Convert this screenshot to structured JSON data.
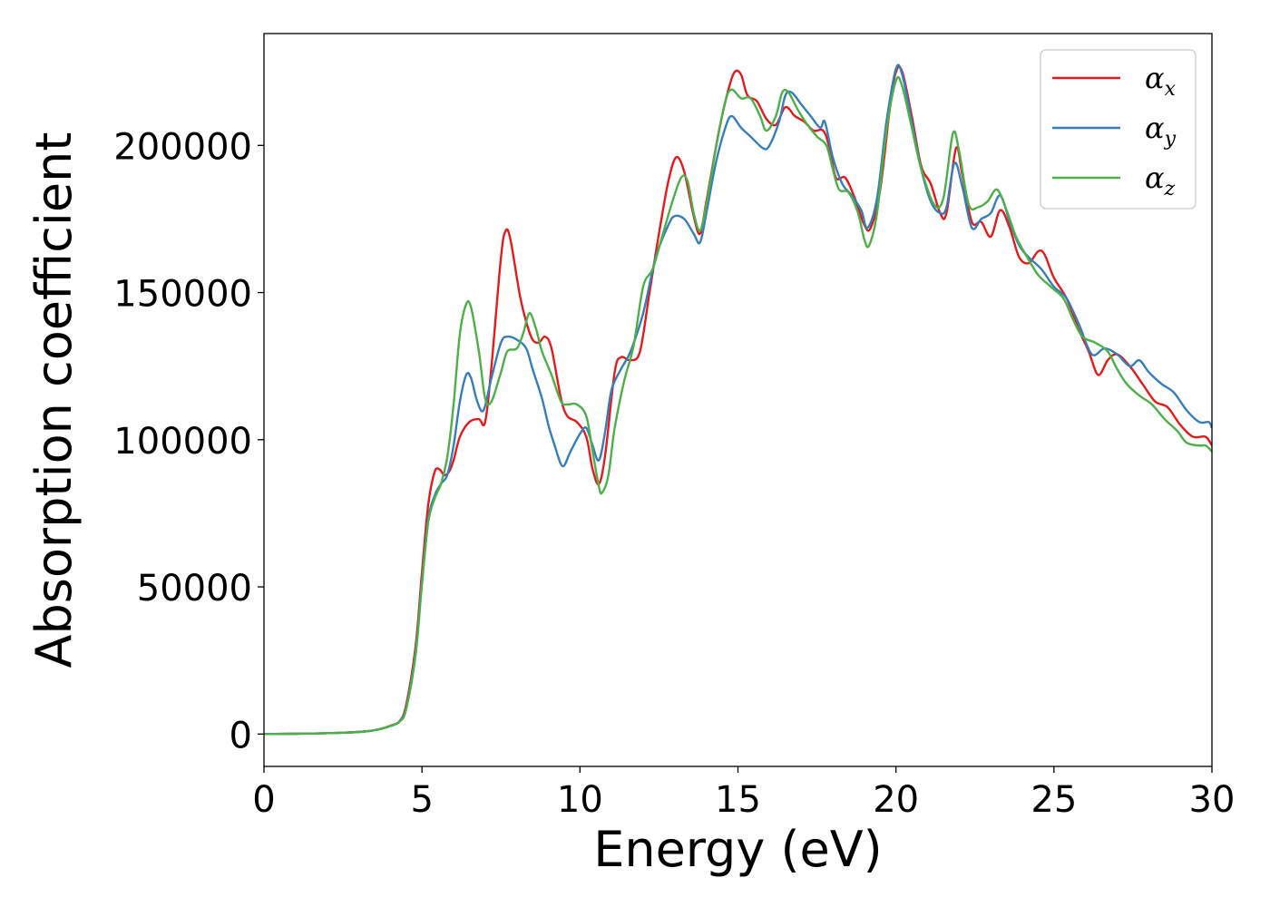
{
  "chart_data": {
    "type": "line",
    "title": "",
    "xlabel": "Energy (eV)",
    "ylabel": "Absorption coefficient",
    "xlim": [
      0,
      30
    ],
    "ylim": [
      -11000,
      238000
    ],
    "xticks": [
      0,
      5,
      10,
      15,
      20,
      25,
      30
    ],
    "xtick_labels": [
      "0",
      "5",
      "10",
      "15",
      "20",
      "25",
      "30"
    ],
    "yticks": [
      0,
      50000,
      100000,
      150000,
      200000
    ],
    "ytick_labels": [
      "0",
      "50000",
      "100000",
      "150000",
      "200000"
    ],
    "grid": false,
    "legend_position": "top-right",
    "series": [
      {
        "name": "αx",
        "base": "α",
        "sub": "x",
        "color": "#e41a1c",
        "points": [
          [
            0,
            0
          ],
          [
            1,
            100
          ],
          [
            2,
            300
          ],
          [
            3,
            700
          ],
          [
            3.5,
            1300
          ],
          [
            4,
            2800
          ],
          [
            4.3,
            4500
          ],
          [
            4.5,
            10000
          ],
          [
            4.8,
            30000
          ],
          [
            5,
            55000
          ],
          [
            5.2,
            78000
          ],
          [
            5.4,
            89000
          ],
          [
            5.55,
            90000
          ],
          [
            5.7,
            88000
          ],
          [
            5.85,
            89000
          ],
          [
            6,
            93000
          ],
          [
            6.2,
            101000
          ],
          [
            6.5,
            106000
          ],
          [
            6.8,
            107000
          ],
          [
            7,
            106000
          ],
          [
            7.2,
            125000
          ],
          [
            7.5,
            162000
          ],
          [
            7.65,
            171000
          ],
          [
            7.8,
            168000
          ],
          [
            8.1,
            149000
          ],
          [
            8.3,
            140000
          ],
          [
            8.5,
            134000
          ],
          [
            8.7,
            133000
          ],
          [
            8.9,
            135000
          ],
          [
            9.1,
            131000
          ],
          [
            9.4,
            114000
          ],
          [
            9.6,
            108000
          ],
          [
            9.9,
            106000
          ],
          [
            10.2,
            101000
          ],
          [
            10.4,
            90000
          ],
          [
            10.6,
            85000
          ],
          [
            10.8,
            95000
          ],
          [
            11.1,
            123000
          ],
          [
            11.3,
            128000
          ],
          [
            11.6,
            127000
          ],
          [
            11.9,
            130000
          ],
          [
            12.2,
            150000
          ],
          [
            12.5,
            170000
          ],
          [
            12.8,
            188000
          ],
          [
            13.05,
            196000
          ],
          [
            13.3,
            191000
          ],
          [
            13.6,
            176000
          ],
          [
            13.8,
            170000
          ],
          [
            14,
            181000
          ],
          [
            14.4,
            205000
          ],
          [
            14.7,
            219000
          ],
          [
            14.9,
            225000
          ],
          [
            15.1,
            224000
          ],
          [
            15.3,
            217000
          ],
          [
            15.6,
            215000
          ],
          [
            15.9,
            209000
          ],
          [
            16.2,
            207000
          ],
          [
            16.5,
            213000
          ],
          [
            16.8,
            210000
          ],
          [
            17.1,
            208000
          ],
          [
            17.4,
            205000
          ],
          [
            17.7,
            205000
          ],
          [
            17.9,
            199000
          ],
          [
            18.1,
            189000
          ],
          [
            18.4,
            189000
          ],
          [
            18.7,
            182000
          ],
          [
            19,
            173000
          ],
          [
            19.2,
            172000
          ],
          [
            19.5,
            185000
          ],
          [
            19.8,
            212000
          ],
          [
            20,
            225000
          ],
          [
            20.2,
            225000
          ],
          [
            20.5,
            210000
          ],
          [
            20.8,
            193000
          ],
          [
            21.1,
            187000
          ],
          [
            21.4,
            177000
          ],
          [
            21.6,
            177000
          ],
          [
            21.9,
            199000
          ],
          [
            22.1,
            190000
          ],
          [
            22.4,
            174000
          ],
          [
            22.7,
            174000
          ],
          [
            23,
            169000
          ],
          [
            23.3,
            178000
          ],
          [
            23.6,
            172000
          ],
          [
            23.9,
            162000
          ],
          [
            24.2,
            160000
          ],
          [
            24.5,
            164000
          ],
          [
            24.7,
            163000
          ],
          [
            25,
            155000
          ],
          [
            25.4,
            148000
          ],
          [
            25.8,
            137000
          ],
          [
            26.1,
            130000
          ],
          [
            26.4,
            122000
          ],
          [
            26.7,
            127000
          ],
          [
            27,
            129000
          ],
          [
            27.4,
            125000
          ],
          [
            27.8,
            119000
          ],
          [
            28.2,
            113000
          ],
          [
            28.6,
            111000
          ],
          [
            29,
            105000
          ],
          [
            29.4,
            101000
          ],
          [
            29.8,
            101000
          ],
          [
            30,
            98000
          ]
        ]
      },
      {
        "name": "αy",
        "base": "α",
        "sub": "y",
        "color": "#377eb8",
        "points": [
          [
            0,
            0
          ],
          [
            1,
            100
          ],
          [
            2,
            300
          ],
          [
            3,
            700
          ],
          [
            3.5,
            1300
          ],
          [
            4,
            2700
          ],
          [
            4.3,
            4400
          ],
          [
            4.5,
            9000
          ],
          [
            4.8,
            28000
          ],
          [
            5,
            52000
          ],
          [
            5.2,
            73000
          ],
          [
            5.4,
            81000
          ],
          [
            5.6,
            85000
          ],
          [
            5.8,
            88000
          ],
          [
            6,
            98000
          ],
          [
            6.2,
            113000
          ],
          [
            6.4,
            122000
          ],
          [
            6.55,
            121000
          ],
          [
            6.75,
            113000
          ],
          [
            6.95,
            110000
          ],
          [
            7.2,
            121000
          ],
          [
            7.5,
            133000
          ],
          [
            7.7,
            135000
          ],
          [
            8,
            134000
          ],
          [
            8.3,
            131000
          ],
          [
            8.5,
            124000
          ],
          [
            8.8,
            114000
          ],
          [
            9,
            105000
          ],
          [
            9.2,
            98000
          ],
          [
            9.45,
            91000
          ],
          [
            9.7,
            96000
          ],
          [
            10,
            102000
          ],
          [
            10.2,
            104000
          ],
          [
            10.4,
            98000
          ],
          [
            10.6,
            93000
          ],
          [
            10.8,
            103000
          ],
          [
            11,
            117000
          ],
          [
            11.3,
            124000
          ],
          [
            11.6,
            130000
          ],
          [
            12,
            143000
          ],
          [
            12.4,
            162000
          ],
          [
            12.8,
            173000
          ],
          [
            13,
            176000
          ],
          [
            13.3,
            175000
          ],
          [
            13.6,
            170000
          ],
          [
            13.8,
            167000
          ],
          [
            14,
            177000
          ],
          [
            14.3,
            194000
          ],
          [
            14.6,
            206000
          ],
          [
            14.8,
            210000
          ],
          [
            15.1,
            206000
          ],
          [
            15.4,
            203000
          ],
          [
            15.8,
            199000
          ],
          [
            16,
            200000
          ],
          [
            16.3,
            208000
          ],
          [
            16.5,
            217000
          ],
          [
            16.7,
            218000
          ],
          [
            17,
            214000
          ],
          [
            17.3,
            210000
          ],
          [
            17.6,
            206000
          ],
          [
            17.75,
            208000
          ],
          [
            18,
            196000
          ],
          [
            18.3,
            187000
          ],
          [
            18.6,
            183000
          ],
          [
            18.9,
            178000
          ],
          [
            19.1,
            172000
          ],
          [
            19.4,
            182000
          ],
          [
            19.7,
            208000
          ],
          [
            20,
            226000
          ],
          [
            20.2,
            224000
          ],
          [
            20.5,
            208000
          ],
          [
            20.8,
            192000
          ],
          [
            21.1,
            181000
          ],
          [
            21.4,
            177000
          ],
          [
            21.6,
            179000
          ],
          [
            21.85,
            194000
          ],
          [
            22.1,
            186000
          ],
          [
            22.4,
            172000
          ],
          [
            22.7,
            175000
          ],
          [
            23,
            177000
          ],
          [
            23.3,
            183000
          ],
          [
            23.6,
            174000
          ],
          [
            23.9,
            166000
          ],
          [
            24.2,
            162000
          ],
          [
            24.6,
            158000
          ],
          [
            25,
            152000
          ],
          [
            25.4,
            148000
          ],
          [
            25.8,
            139000
          ],
          [
            26.2,
            129000
          ],
          [
            26.6,
            131000
          ],
          [
            27,
            129000
          ],
          [
            27.4,
            125000
          ],
          [
            27.7,
            127000
          ],
          [
            28,
            123000
          ],
          [
            28.4,
            119000
          ],
          [
            28.8,
            116000
          ],
          [
            29.2,
            110000
          ],
          [
            29.6,
            106000
          ],
          [
            29.9,
            106000
          ],
          [
            30,
            104000
          ]
        ]
      },
      {
        "name": "αz",
        "base": "α",
        "sub": "z",
        "color": "#4daf4a",
        "points": [
          [
            0,
            0
          ],
          [
            1,
            100
          ],
          [
            2,
            300
          ],
          [
            3,
            700
          ],
          [
            3.5,
            1300
          ],
          [
            4,
            2700
          ],
          [
            4.3,
            4300
          ],
          [
            4.5,
            8500
          ],
          [
            4.8,
            27000
          ],
          [
            5,
            51000
          ],
          [
            5.2,
            72000
          ],
          [
            5.4,
            80000
          ],
          [
            5.6,
            85000
          ],
          [
            5.8,
            94000
          ],
          [
            6,
            112000
          ],
          [
            6.2,
            136000
          ],
          [
            6.4,
            146000
          ],
          [
            6.55,
            145000
          ],
          [
            6.8,
            130000
          ],
          [
            7,
            114000
          ],
          [
            7.2,
            113000
          ],
          [
            7.5,
            123000
          ],
          [
            7.7,
            130000
          ],
          [
            8,
            131000
          ],
          [
            8.2,
            136000
          ],
          [
            8.4,
            143000
          ],
          [
            8.6,
            138000
          ],
          [
            8.8,
            130000
          ],
          [
            9.1,
            122000
          ],
          [
            9.4,
            113000
          ],
          [
            9.6,
            112000
          ],
          [
            9.9,
            112000
          ],
          [
            10.2,
            108000
          ],
          [
            10.4,
            96000
          ],
          [
            10.6,
            84000
          ],
          [
            10.7,
            82000
          ],
          [
            10.9,
            88000
          ],
          [
            11.1,
            104000
          ],
          [
            11.4,
            120000
          ],
          [
            11.7,
            132000
          ],
          [
            12,
            152000
          ],
          [
            12.3,
            158000
          ],
          [
            12.6,
            169000
          ],
          [
            12.9,
            180000
          ],
          [
            13.2,
            189000
          ],
          [
            13.4,
            188000
          ],
          [
            13.6,
            177000
          ],
          [
            13.8,
            171000
          ],
          [
            14,
            180000
          ],
          [
            14.3,
            199000
          ],
          [
            14.6,
            215000
          ],
          [
            14.8,
            219000
          ],
          [
            15.1,
            216000
          ],
          [
            15.4,
            216000
          ],
          [
            15.7,
            210000
          ],
          [
            15.9,
            205000
          ],
          [
            16.2,
            210000
          ],
          [
            16.4,
            218000
          ],
          [
            16.6,
            218000
          ],
          [
            16.9,
            212000
          ],
          [
            17.2,
            207000
          ],
          [
            17.5,
            203000
          ],
          [
            17.8,
            200000
          ],
          [
            18,
            192000
          ],
          [
            18.2,
            185000
          ],
          [
            18.5,
            184000
          ],
          [
            18.8,
            177000
          ],
          [
            19,
            168000
          ],
          [
            19.15,
            166000
          ],
          [
            19.4,
            177000
          ],
          [
            19.7,
            205000
          ],
          [
            20,
            222000
          ],
          [
            20.2,
            220000
          ],
          [
            20.5,
            206000
          ],
          [
            20.8,
            192000
          ],
          [
            21.2,
            180000
          ],
          [
            21.5,
            182000
          ],
          [
            21.8,
            204000
          ],
          [
            22,
            198000
          ],
          [
            22.3,
            180000
          ],
          [
            22.6,
            179000
          ],
          [
            22.9,
            181000
          ],
          [
            23.2,
            185000
          ],
          [
            23.5,
            178000
          ],
          [
            23.8,
            169000
          ],
          [
            24.1,
            163000
          ],
          [
            24.5,
            156000
          ],
          [
            24.9,
            152000
          ],
          [
            25.3,
            148000
          ],
          [
            25.6,
            141000
          ],
          [
            25.9,
            135000
          ],
          [
            26.3,
            133000
          ],
          [
            26.7,
            130000
          ],
          [
            27,
            124000
          ],
          [
            27.3,
            119000
          ],
          [
            27.7,
            115000
          ],
          [
            28.1,
            112000
          ],
          [
            28.5,
            107000
          ],
          [
            28.9,
            103000
          ],
          [
            29.2,
            99000
          ],
          [
            29.6,
            98000
          ],
          [
            29.8,
            98000
          ],
          [
            30,
            96000
          ]
        ]
      }
    ]
  }
}
